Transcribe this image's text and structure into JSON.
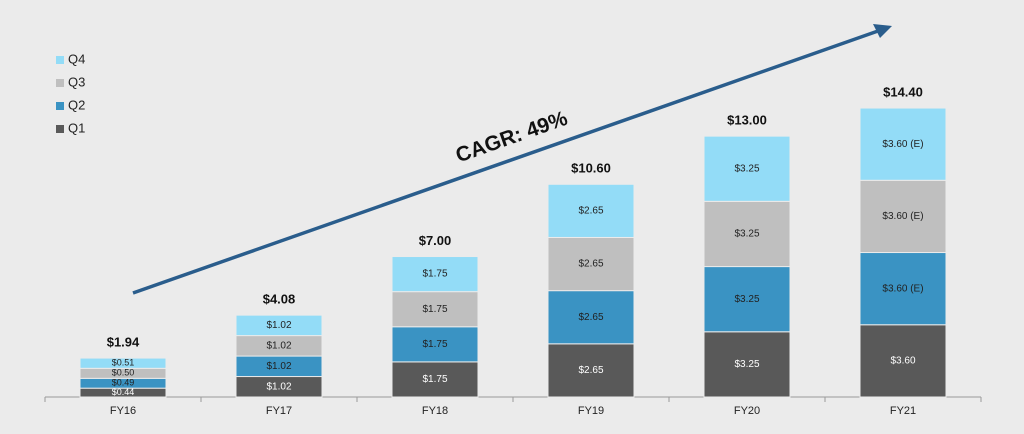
{
  "chart_data": {
    "type": "stacked_bar",
    "annotation": "CAGR: 49%",
    "categories": [
      "FY16",
      "FY17",
      "FY18",
      "FY19",
      "FY20",
      "FY21"
    ],
    "series": [
      {
        "name": "Q1",
        "color": "#595959",
        "values": [
          0.44,
          1.02,
          1.75,
          2.65,
          3.25,
          3.6
        ],
        "value_labels": [
          "$0.44",
          "$1.02",
          "$1.75",
          "$2.65",
          "$3.25",
          "$3.60"
        ]
      },
      {
        "name": "Q2",
        "color": "#3a93c3",
        "values": [
          0.49,
          1.02,
          1.75,
          2.65,
          3.25,
          3.6
        ],
        "value_labels": [
          "$0.49",
          "$1.02",
          "$1.75",
          "$2.65",
          "$3.25",
          "$3.60 (E)"
        ]
      },
      {
        "name": "Q3",
        "color": "#bfbfbf",
        "values": [
          0.5,
          1.02,
          1.75,
          2.65,
          3.25,
          3.6
        ],
        "value_labels": [
          "$0.50",
          "$1.02",
          "$1.75",
          "$2.65",
          "$3.25",
          "$3.60 (E)"
        ]
      },
      {
        "name": "Q4",
        "color": "#93dcf7",
        "values": [
          0.51,
          1.02,
          1.75,
          2.65,
          3.25,
          3.6
        ],
        "value_labels": [
          "$0.51",
          "$1.02",
          "$1.75",
          "$2.65",
          "$3.25",
          "$3.60 (E)"
        ]
      }
    ],
    "totals": [
      1.94,
      4.08,
      7.0,
      10.6,
      13.0,
      14.4
    ],
    "total_labels": [
      "$1.94",
      "$4.08",
      "$7.00",
      "$10.60",
      "$13.00",
      "$14.40"
    ],
    "ylim": [
      0,
      15
    ],
    "legend": "top-left"
  }
}
